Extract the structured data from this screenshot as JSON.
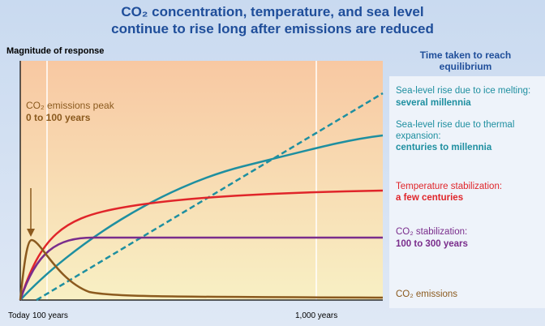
{
  "header": {
    "title_line1": "CO₂ concentration, temperature, and sea level",
    "title_line2": "continue to rise long after emissions are reduced"
  },
  "axis": {
    "y_label": "Magnitude of response",
    "x_labels": [
      "Today",
      "100 years",
      "1,000 years"
    ]
  },
  "annotation": {
    "line1": "CO₂ emissions peak",
    "line2": "0 to 100 years"
  },
  "panel": {
    "heading_line1": "Time taken to reach",
    "heading_line2": "equilibrium",
    "items": [
      {
        "lines": [
          "Sea-level rise due to ice melting:"
        ],
        "time": "several millennia"
      },
      {
        "lines": [
          "Sea-level rise due to thermal",
          "expansion:"
        ],
        "time": "centuries to millennia"
      },
      {
        "lines": [
          "Temperature stabilization:"
        ],
        "time": "a few centuries"
      },
      {
        "lines": [
          "CO₂ stabilization:"
        ],
        "time": "100 to 300 years"
      },
      {
        "lines": [
          "CO₂ emissions"
        ]
      }
    ]
  }
}
